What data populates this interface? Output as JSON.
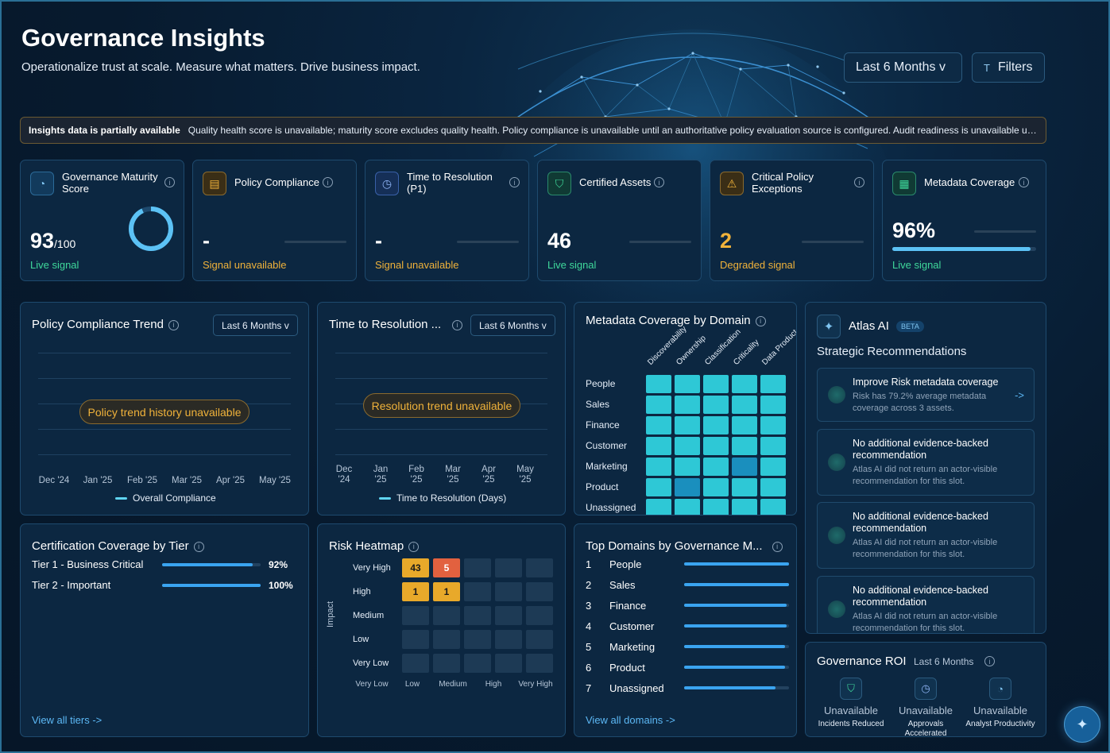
{
  "header": {
    "title": "Governance Insights",
    "subtitle": "Operationalize trust at scale. Measure what matters. Drive business impact.",
    "range_label": "Last 6 Months  v",
    "filters_label": "Filters"
  },
  "banner": {
    "bold": "Insights data is partially available",
    "text": "Quality health score is unavailable; maturity score excludes quality health. Policy compliance is unavailable until an authoritative policy evaluation source is configured. Audit readiness is unavailable until audit assessment data is available."
  },
  "kpis": [
    {
      "label": "Governance Maturity Score",
      "value": "93",
      "suffix": "/100",
      "status": "Live signal",
      "icon": "gauge-icon",
      "ring": 0.93
    },
    {
      "label": "Policy Compliance",
      "value": "-",
      "status": "Signal unavailable",
      "icon": "document-icon"
    },
    {
      "label": "Time to Resolution (P1)",
      "value": "-",
      "status": "Signal unavailable",
      "icon": "clock-icon"
    },
    {
      "label": "Certified Assets",
      "value": "46",
      "status": "Live signal",
      "icon": "shield-check-icon"
    },
    {
      "label": "Critical Policy Exceptions",
      "value": "2",
      "status": "Degraded signal",
      "icon": "warning-icon"
    },
    {
      "label": "Metadata Coverage",
      "value": "96%",
      "status": "Live signal",
      "icon": "table-icon",
      "progress": 0.96
    }
  ],
  "policy_trend": {
    "title": "Policy Compliance Trend",
    "range": "Last 6 Months  v",
    "message": "Policy trend history unavailable",
    "months": [
      "Dec '24",
      "Jan '25",
      "Feb '25",
      "Mar '25",
      "Apr '25",
      "May '25"
    ],
    "legend": "Overall Compliance"
  },
  "resolution_trend": {
    "title": "Time to Resolution ...",
    "range": "Last 6 Months  v",
    "message": "Resolution trend unavailable",
    "months": [
      [
        "Dec",
        "'24"
      ],
      [
        "Jan",
        "'25"
      ],
      [
        "Feb",
        "'25"
      ],
      [
        "Mar",
        "'25"
      ],
      [
        "Apr",
        "'25"
      ],
      [
        "May",
        "'25"
      ]
    ],
    "legend": "Time to Resolution (Days)"
  },
  "metadata_coverage": {
    "title": "Metadata Coverage by Domain",
    "columns": [
      "Discoverability",
      "Ownership",
      "Classification",
      "Criticality",
      "Data Product"
    ],
    "rows": [
      "People",
      "Sales",
      "Finance",
      "Customer",
      "Marketing",
      "Product",
      "Unassigned"
    ],
    "levels": [
      [
        1,
        1,
        1,
        1,
        1
      ],
      [
        1,
        1,
        1,
        1,
        1
      ],
      [
        1,
        1,
        1,
        1,
        1
      ],
      [
        1,
        1,
        1,
        1,
        1
      ],
      [
        1,
        1,
        1,
        0.6,
        1
      ],
      [
        1,
        0.6,
        1,
        1,
        1
      ],
      [
        1,
        1,
        1,
        1,
        1
      ]
    ]
  },
  "atlas": {
    "title": "Atlas AI",
    "badge": "BETA",
    "section": "Strategic Recommendations",
    "recs": [
      {
        "title": "Improve Risk metadata coverage",
        "desc": "Risk has 79.2% average metadata coverage across 3 assets.",
        "action": "->"
      },
      {
        "title": "No additional evidence-backed recommendation",
        "desc": "Atlas AI did not return an actor-visible recommendation for this slot."
      },
      {
        "title": "No additional evidence-backed recommendation",
        "desc": "Atlas AI did not return an actor-visible recommendation for this slot."
      },
      {
        "title": "No additional evidence-backed recommendation",
        "desc": "Atlas AI did not return an actor-visible recommendation for this slot."
      }
    ]
  },
  "certification": {
    "title": "Certification Coverage by Tier",
    "tiers": [
      {
        "name": "Tier 1 - Business Critical",
        "pct": "92%",
        "value": 0.92
      },
      {
        "name": "Tier 2 - Important",
        "pct": "100%",
        "value": 1.0
      }
    ],
    "link": "View all tiers ->"
  },
  "risk": {
    "title": "Risk Heatmap",
    "y_axis": "Impact",
    "rows": [
      "Very High",
      "High",
      "Medium",
      "Low",
      "Very Low"
    ],
    "cols": [
      "Very Low",
      "Low",
      "Medium",
      "High",
      "Very High"
    ],
    "cells": [
      [
        "43",
        "5",
        "",
        "",
        ""
      ],
      [
        "1",
        "1",
        "",
        "",
        ""
      ],
      [
        "",
        "",
        "",
        "",
        ""
      ],
      [
        "",
        "",
        "",
        "",
        ""
      ],
      [
        "",
        "",
        "",
        "",
        ""
      ]
    ],
    "colors": [
      [
        "#e8a92a",
        "#e2613f",
        "",
        "",
        ""
      ],
      [
        "#e8a92a",
        "#e8a92a",
        "",
        "",
        ""
      ],
      [
        "",
        "",
        "",
        "",
        ""
      ],
      [
        "",
        "",
        "",
        "",
        ""
      ],
      [
        "",
        "",
        "",
        "",
        ""
      ]
    ]
  },
  "top_domains": {
    "title": "Top Domains by Governance M...",
    "items": [
      {
        "rank": "1",
        "name": "People",
        "value": 1.0
      },
      {
        "rank": "2",
        "name": "Sales",
        "value": 1.0
      },
      {
        "rank": "3",
        "name": "Finance",
        "value": 0.98
      },
      {
        "rank": "4",
        "name": "Customer",
        "value": 0.98
      },
      {
        "rank": "5",
        "name": "Marketing",
        "value": 0.96
      },
      {
        "rank": "6",
        "name": "Product",
        "value": 0.96
      },
      {
        "rank": "7",
        "name": "Unassigned",
        "value": 0.87
      }
    ],
    "link": "View all domains ->"
  },
  "roi": {
    "title": "Governance ROI",
    "range": "Last 6 Months",
    "items": [
      {
        "value": "Unavailable",
        "label": "Incidents Reduced",
        "icon": "shield-check-icon"
      },
      {
        "value": "Unavailable",
        "label": "Approvals Accelerated",
        "icon": "clock-icon"
      },
      {
        "value": "Unavailable",
        "label": "Analyst Productivity",
        "icon": "gauge-icon"
      }
    ]
  },
  "colors": {
    "live": "#3fd89b",
    "warn": "#f0b23a",
    "accent": "#3aa4f0",
    "teal": "#2ec8d6"
  }
}
